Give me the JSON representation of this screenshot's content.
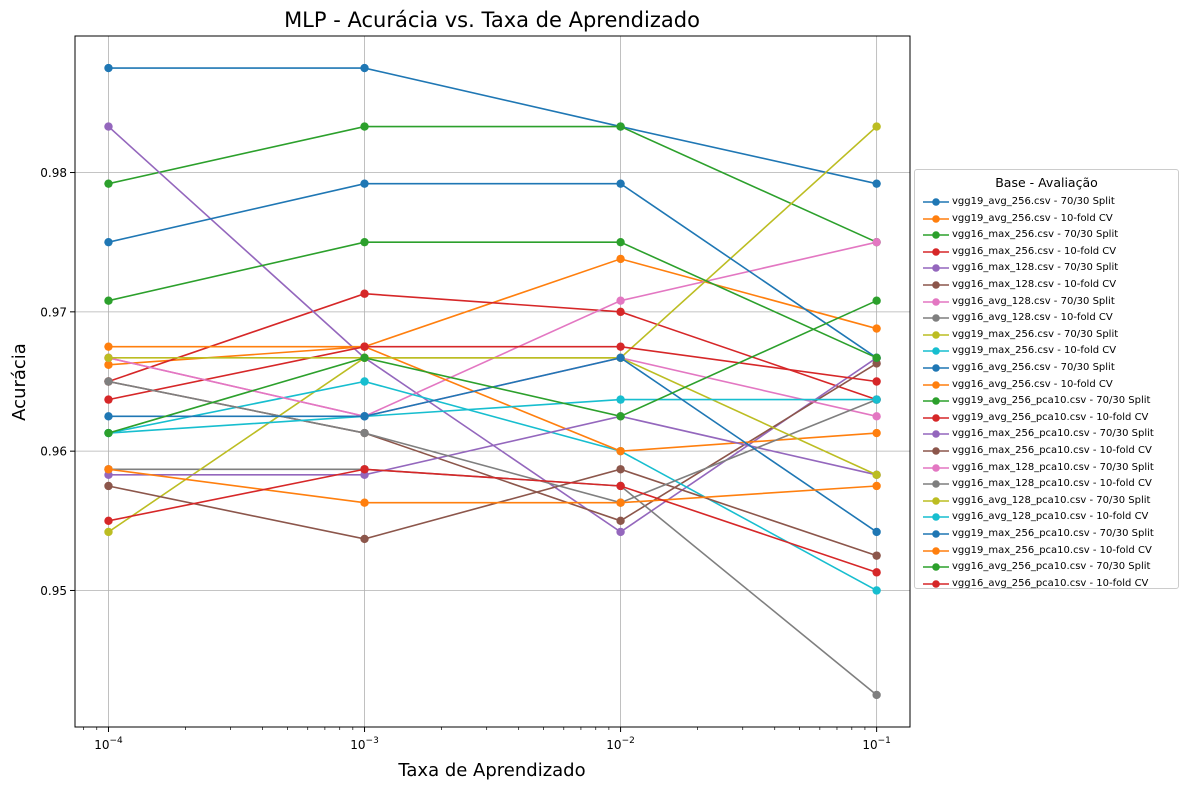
{
  "chart_data": {
    "type": "line",
    "title": "MLP - Acurácia vs. Taxa de Aprendizado",
    "xlabel": "Taxa de Aprendizado",
    "ylabel": "Acurácia",
    "xscale": "log",
    "x": [
      0.0001,
      0.001,
      0.01,
      0.1
    ],
    "xlim": [
      7.4e-05,
      0.135
    ],
    "ylim": [
      0.9402,
      0.9898
    ],
    "x_tick_labels": [
      {
        "base": "10",
        "exp": "−4"
      },
      {
        "base": "10",
        "exp": "−3"
      },
      {
        "base": "10",
        "exp": "−2"
      },
      {
        "base": "10",
        "exp": "−1"
      }
    ],
    "y_ticks": [
      0.95,
      0.96,
      0.97,
      0.98
    ],
    "y_tick_labels": [
      "0.95",
      "0.96",
      "0.97",
      "0.98"
    ],
    "grid": true,
    "legend": {
      "title": "Base - Avaliação",
      "placement": "outside-right"
    },
    "series": [
      {
        "name": "vgg19_avg_256.csv - 70/30 Split",
        "color": "#1f77b4",
        "values": [
          0.9875,
          0.9875,
          0.9833,
          0.9792
        ]
      },
      {
        "name": "vgg19_avg_256.csv - 10-fold CV",
        "color": "#ff7f0e",
        "values": [
          0.9662,
          0.9675,
          0.9738,
          0.9688
        ]
      },
      {
        "name": "vgg16_max_256.csv - 70/30 Split",
        "color": "#2ca02c",
        "values": [
          0.9792,
          0.9833,
          0.9833,
          0.975
        ]
      },
      {
        "name": "vgg16_max_256.csv - 10-fold CV",
        "color": "#d62728",
        "values": [
          0.965,
          0.9713,
          0.97,
          0.9637
        ]
      },
      {
        "name": "vgg16_max_128.csv - 70/30 Split",
        "color": "#9467bd",
        "values": [
          0.9833,
          0.9667,
          0.9542,
          0.9667
        ]
      },
      {
        "name": "vgg16_max_128.csv - 10-fold CV",
        "color": "#8c564b",
        "values": [
          0.965,
          0.9613,
          0.955,
          0.9663
        ]
      },
      {
        "name": "vgg16_avg_128.csv - 70/30 Split",
        "color": "#e377c2",
        "values": [
          0.9667,
          0.9625,
          0.9708,
          0.975
        ]
      },
      {
        "name": "vgg16_avg_128.csv - 10-fold CV",
        "color": "#7f7f7f",
        "values": [
          0.9587,
          0.9587,
          0.9575,
          0.9425
        ]
      },
      {
        "name": "vgg19_max_256.csv - 70/30 Split",
        "color": "#bcbd22",
        "values": [
          0.9542,
          0.9667,
          0.9667,
          0.9833
        ]
      },
      {
        "name": "vgg19_max_256.csv - 10-fold CV",
        "color": "#17becf",
        "values": [
          0.9613,
          0.965,
          0.96,
          0.95
        ]
      },
      {
        "name": "vgg16_avg_256.csv - 70/30 Split",
        "color": "#1f77b4",
        "values": [
          0.975,
          0.9792,
          0.9792,
          0.9667
        ]
      },
      {
        "name": "vgg16_avg_256.csv - 10-fold CV",
        "color": "#ff7f0e",
        "values": [
          0.9675,
          0.9675,
          0.96,
          0.9613
        ]
      },
      {
        "name": "vgg19_avg_256_pca10.csv - 70/30 Split",
        "color": "#2ca02c",
        "values": [
          0.9708,
          0.975,
          0.975,
          0.9667
        ]
      },
      {
        "name": "vgg19_avg_256_pca10.csv - 10-fold CV",
        "color": "#d62728",
        "values": [
          0.9637,
          0.9675,
          0.9675,
          0.965
        ]
      },
      {
        "name": "vgg16_max_256_pca10.csv - 70/30 Split",
        "color": "#9467bd",
        "values": [
          0.9583,
          0.9583,
          0.9625,
          0.9583
        ]
      },
      {
        "name": "vgg16_max_256_pca10.csv - 10-fold CV",
        "color": "#8c564b",
        "values": [
          0.9575,
          0.9537,
          0.9587,
          0.9525
        ]
      },
      {
        "name": "vgg16_max_128_pca10.csv - 70/30 Split",
        "color": "#e377c2",
        "values": [
          0.9667,
          0.9625,
          0.9667,
          0.9625
        ]
      },
      {
        "name": "vgg16_max_128_pca10.csv - 10-fold CV",
        "color": "#7f7f7f",
        "values": [
          0.965,
          0.9613,
          0.9563,
          0.9637
        ]
      },
      {
        "name": "vgg16_avg_128_pca10.csv - 70/30 Split",
        "color": "#bcbd22",
        "values": [
          0.9667,
          0.9667,
          0.9667,
          0.9583
        ]
      },
      {
        "name": "vgg16_avg_128_pca10.csv - 10-fold CV",
        "color": "#17becf",
        "values": [
          0.9613,
          0.9625,
          0.9637,
          0.9637
        ]
      },
      {
        "name": "vgg19_max_256_pca10.csv - 70/30 Split",
        "color": "#1f77b4",
        "values": [
          0.9625,
          0.9625,
          0.9667,
          0.9542
        ]
      },
      {
        "name": "vgg19_max_256_pca10.csv - 10-fold CV",
        "color": "#ff7f0e",
        "values": [
          0.9587,
          0.9563,
          0.9563,
          0.9575
        ]
      },
      {
        "name": "vgg16_avg_256_pca10.csv - 70/30 Split",
        "color": "#2ca02c",
        "values": [
          0.9613,
          0.9667,
          0.9625,
          0.9708
        ]
      },
      {
        "name": "vgg16_avg_256_pca10.csv - 10-fold CV",
        "color": "#d62728",
        "values": [
          0.955,
          0.9587,
          0.9575,
          0.9513
        ]
      }
    ]
  }
}
